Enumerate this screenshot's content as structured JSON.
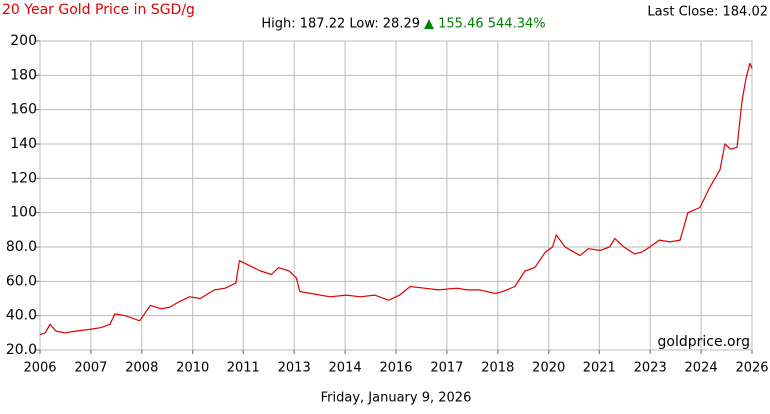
{
  "chart_data": {
    "type": "line",
    "title": "20 Year Gold Price in SGD/g",
    "stats_prefix": "High: 187.22 Low: 28.29",
    "stats_change": "▲ 155.46 544.34%",
    "last_close": "Last Close: 184.02",
    "date": "Friday, January 9, 2026",
    "watermark": "goldprice.org",
    "grid": true,
    "xlim": [
      2006,
      2026
    ],
    "ylim": [
      20,
      200
    ],
    "xticks": [
      {
        "value": 2006,
        "label": "2006"
      },
      {
        "value": 2007.43,
        "label": "2007"
      },
      {
        "value": 2008.86,
        "label": "2008"
      },
      {
        "value": 2010.29,
        "label": "2010"
      },
      {
        "value": 2011.71,
        "label": "2011"
      },
      {
        "value": 2013.14,
        "label": "2013"
      },
      {
        "value": 2014.57,
        "label": "2014"
      },
      {
        "value": 2016,
        "label": "2016"
      },
      {
        "value": 2017.43,
        "label": "2017"
      },
      {
        "value": 2018.86,
        "label": "2018"
      },
      {
        "value": 2020.29,
        "label": "2020"
      },
      {
        "value": 2021.71,
        "label": "2021"
      },
      {
        "value": 2023.14,
        "label": "2023"
      },
      {
        "value": 2024.57,
        "label": "2024"
      },
      {
        "value": 2026,
        "label": "2026"
      }
    ],
    "yticks": [
      {
        "value": 20,
        "label": "20.0"
      },
      {
        "value": 40,
        "label": "40.0"
      },
      {
        "value": 60,
        "label": "60.0"
      },
      {
        "value": 80,
        "label": "80.0"
      },
      {
        "value": 100,
        "label": "100"
      },
      {
        "value": 120,
        "label": "120"
      },
      {
        "value": 140,
        "label": "140"
      },
      {
        "value": 160,
        "label": "160"
      },
      {
        "value": 180,
        "label": "180"
      },
      {
        "value": 200,
        "label": "200"
      }
    ],
    "series": [
      {
        "name": "Gold Price SGD/g",
        "color": "#e00000",
        "x": [
          2006,
          2006.15,
          2006.28,
          2006.45,
          2006.7,
          2007.0,
          2007.4,
          2007.7,
          2007.97,
          2008.1,
          2008.4,
          2008.8,
          2009.1,
          2009.4,
          2009.65,
          2009.9,
          2010.2,
          2010.5,
          2010.9,
          2011.2,
          2011.5,
          2011.6,
          2011.8,
          2012.2,
          2012.5,
          2012.7,
          2013.0,
          2013.2,
          2013.3,
          2013.6,
          2014.15,
          2014.6,
          2015.0,
          2015.4,
          2015.8,
          2016.1,
          2016.4,
          2016.8,
          2017.2,
          2017.7,
          2018.0,
          2018.35,
          2018.78,
          2019.0,
          2019.34,
          2019.62,
          2019.9,
          2020.19,
          2020.4,
          2020.5,
          2020.75,
          2021.17,
          2021.4,
          2021.73,
          2022.0,
          2022.15,
          2022.4,
          2022.7,
          2022.9,
          2023.13,
          2023.4,
          2023.7,
          2023.98,
          2024.2,
          2024.54,
          2024.82,
          2025.1,
          2025.24,
          2025.4,
          2025.58,
          2025.72,
          2025.83,
          2025.94,
          2026.0
        ],
        "values": [
          29,
          30,
          35,
          31,
          30,
          31,
          32,
          33,
          35,
          41,
          40,
          37,
          46,
          44,
          45,
          48,
          51,
          50,
          55,
          56,
          59,
          72,
          70,
          66,
          64,
          68,
          66,
          62,
          54,
          53,
          51,
          52,
          51,
          52,
          49,
          52,
          57,
          56,
          55,
          56,
          55,
          55,
          53,
          54,
          57,
          66,
          68,
          77,
          80,
          87,
          80,
          75,
          79,
          78,
          80,
          85,
          80,
          76,
          77,
          80,
          84,
          83,
          84,
          100,
          103,
          115,
          125,
          140,
          137,
          138,
          165,
          178,
          187,
          184
        ]
      }
    ]
  }
}
